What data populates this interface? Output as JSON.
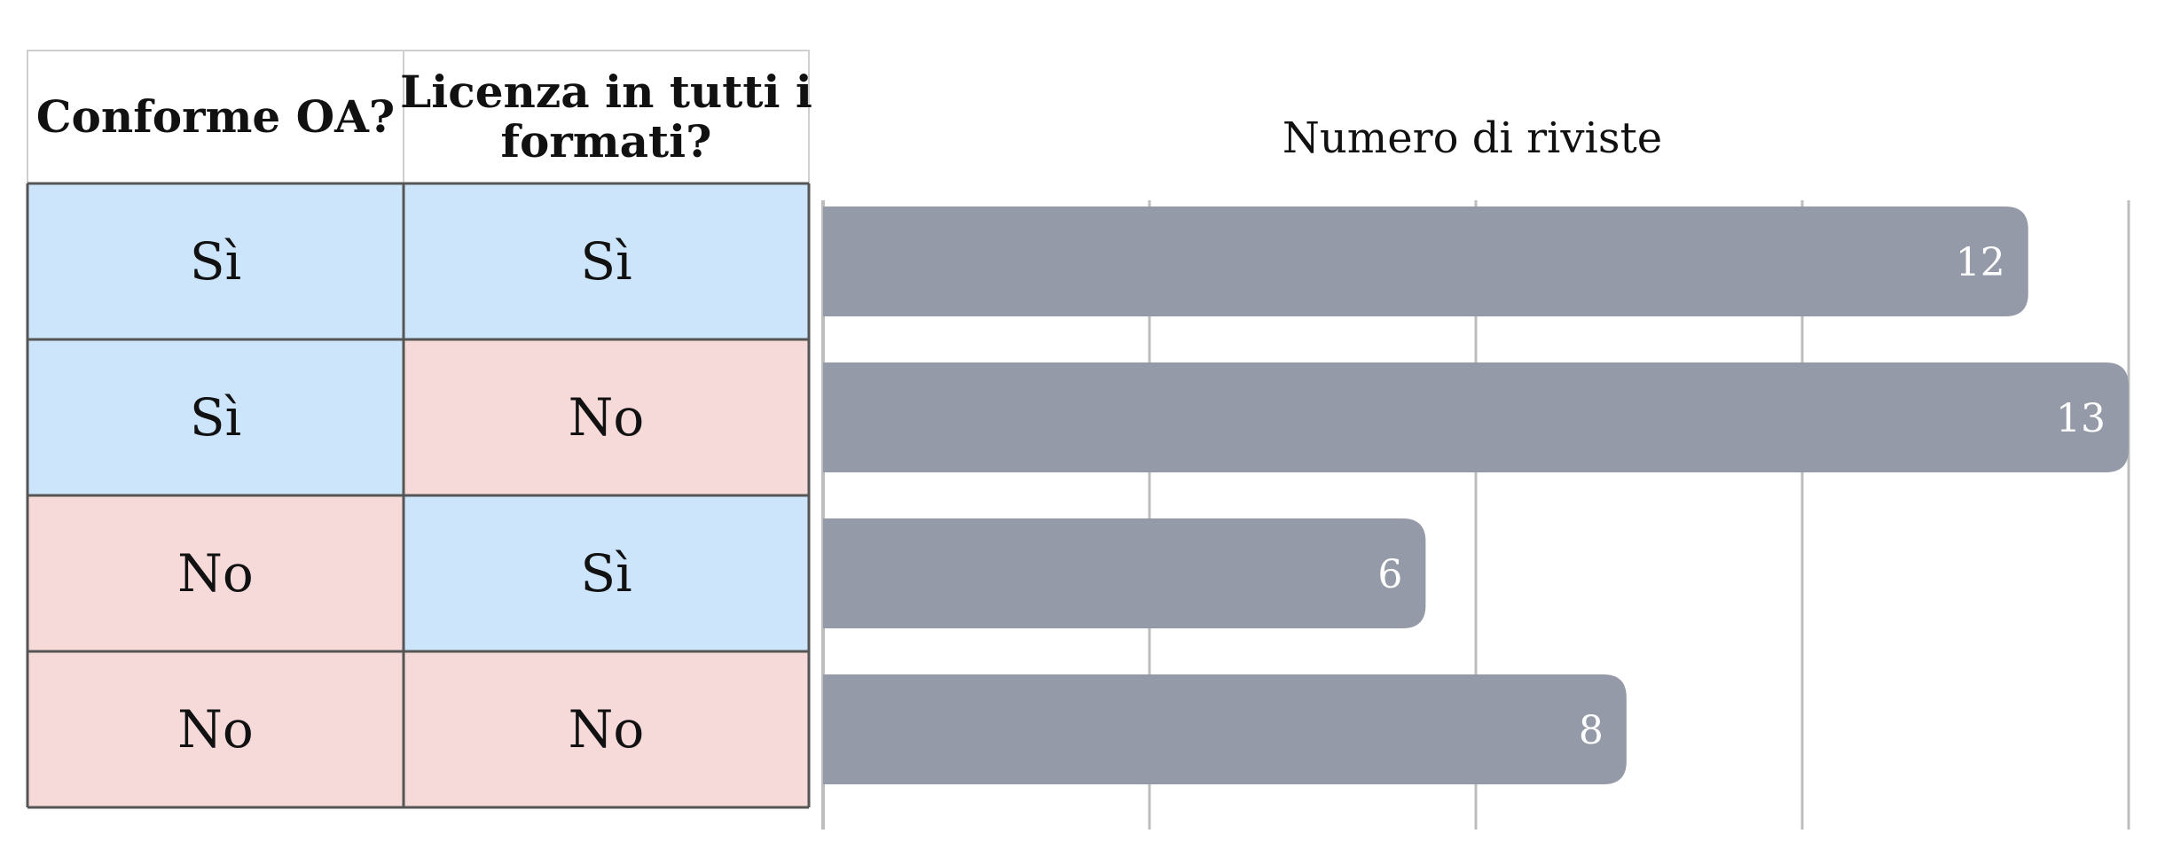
{
  "table": {
    "headers": [
      [
        "Conforme OA?"
      ],
      [
        "Licenza in tutti i",
        "formati?"
      ]
    ],
    "rows": [
      [
        "Sì",
        "Sì"
      ],
      [
        "Sì",
        "No"
      ],
      [
        "No",
        "Sì"
      ],
      [
        "No",
        "No"
      ]
    ]
  },
  "colors": {
    "yes": "#cce5fb",
    "no": "#f6d9d9",
    "bar": "#959aa8",
    "grid": "#bdbdbd",
    "border": "#555555"
  },
  "chart_data": {
    "type": "bar",
    "orientation": "horizontal",
    "title": "Numero di riviste",
    "categories": [
      "Sì / Sì",
      "Sì / No",
      "No / Sì",
      "No / No"
    ],
    "values": [
      12,
      13,
      6,
      8
    ],
    "xlim": [
      0,
      13
    ],
    "grid": true,
    "legend": "none"
  }
}
